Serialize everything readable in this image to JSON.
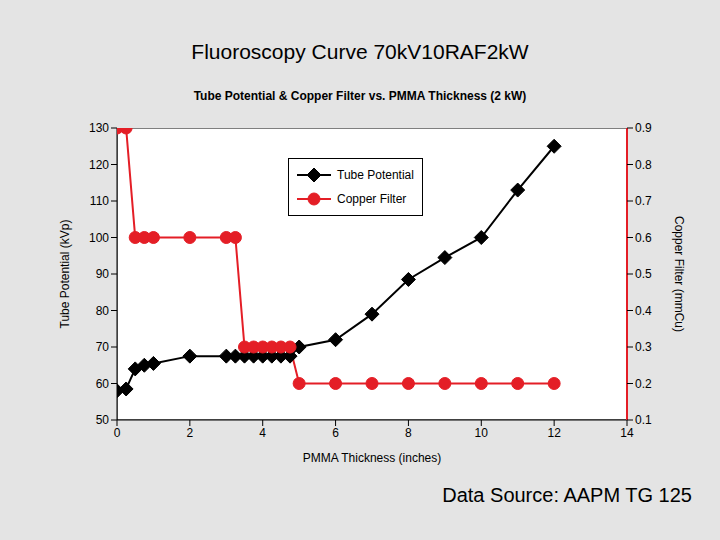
{
  "title": "Fluoroscopy Curve 70kV10RAF2kW",
  "annotation": "Data Source: AAPM TG 125",
  "chart_data": {
    "type": "line",
    "title": "Tube Potential & Copper Filter vs. PMMA Thickness (2 kW)",
    "x_label": "PMMA Thickness (inches)",
    "y_label": "Tube Potential (kVp)",
    "y2_label": "Copper Filter (mmCu)",
    "x": [
      0,
      0.25,
      0.5,
      0.75,
      1,
      2,
      3,
      3.25,
      3.5,
      3.75,
      4,
      4.25,
      4.5,
      4.75,
      5,
      6,
      7,
      8,
      9,
      10,
      11,
      12
    ],
    "series": [
      {
        "name": "Tube Potential",
        "color": "#000000",
        "marker": "diamond",
        "values": [
          58,
          58.5,
          64,
          65,
          65.5,
          67.5,
          67.5,
          67.5,
          67.5,
          67.5,
          67.5,
          67.5,
          67.5,
          67.5,
          70,
          72,
          79,
          88.5,
          94.5,
          100,
          113,
          125
        ]
      },
      {
        "name": "Copper Filter",
        "color": "#e41e26",
        "marker": "circle",
        "axis": "y2",
        "values": [
          0.9,
          0.9,
          0.6,
          0.6,
          0.6,
          0.6,
          0.6,
          0.6,
          0.3,
          0.3,
          0.3,
          0.3,
          0.3,
          0.3,
          0.2,
          0.2,
          0.2,
          0.2,
          0.2,
          0.2,
          0.2,
          0.2
        ]
      }
    ],
    "xlim": [
      0,
      14
    ],
    "xticks": [
      0,
      2,
      4,
      6,
      8,
      10,
      12,
      14
    ],
    "ylim": [
      50,
      130
    ],
    "yticks": [
      50,
      60,
      70,
      80,
      90,
      100,
      110,
      120,
      130
    ],
    "y2lim": [
      0.1,
      0.9
    ],
    "y2ticks": [
      0.1,
      0.2,
      0.3,
      0.4,
      0.5,
      0.6,
      0.7,
      0.8,
      0.9
    ],
    "grid": false,
    "legend": "top"
  }
}
